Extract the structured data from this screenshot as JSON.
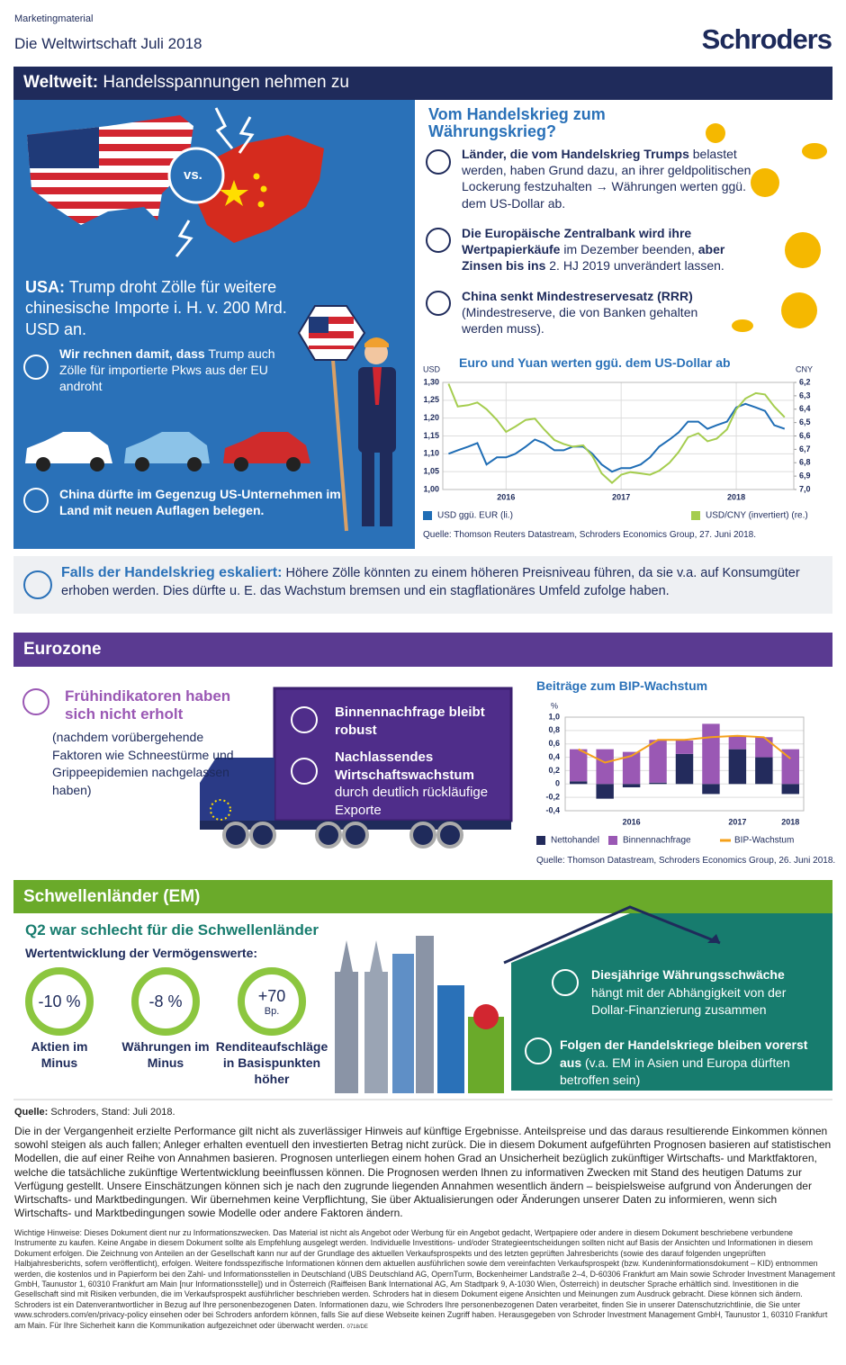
{
  "header": {
    "label": "Marketingmaterial",
    "title": "Die Weltwirtschaft Juli 2018",
    "logo": "Schroders"
  },
  "world": {
    "heading_bold": "Weltweit:",
    "heading": "Handelsspannungen nehmen zu",
    "vs": "vs.",
    "usa_bold": "USA:",
    "usa_text": "Trump droht Zölle für weitere chinesische Importe i. H. v. 200 Mrd. USD an.",
    "cars_bold": "Wir rechnen damit, dass",
    "cars_text": "Trump auch Zölle für importierte Pkws aus der EU androht",
    "china": "China dürfte im Gegenzug US-Unternehmen im Land mit neuen Auflagen belegen.",
    "currency_title": "Vom Handelskrieg zum Währungskrieg?",
    "points": [
      {
        "bold": "Länder, die vom Handelskrieg Trumps",
        "text": "belastet werden, haben Grund dazu, an ihrer geldpolitischen Lockerung festzuhalten → Währungen werten ggü. dem US-Dollar ab."
      },
      {
        "parts": [
          "Die Europäische Zentralbank wird ihre Wertpapierkäufe",
          "im Dezember beenden,",
          "aber Zinsen bis ins",
          "2. HJ 2019 unverändert lassen."
        ]
      },
      {
        "bold": "China senkt Mindestreservesatz (RRR)",
        "text": "(Mindestreserve, die von Banken gehalten werden muss)."
      }
    ],
    "escalation_bold": "Falls der Handelskrieg eskaliert:",
    "escalation_text": "Höhere Zölle könnten zu einem höheren Preisniveau führen, da sie v.a. auf Konsumgüter erhoben werden. Dies dürfte u. E. das Wachstum bremsen und ein stagflationäres Umfeld zufolge haben."
  },
  "eurozone": {
    "heading": "Eurozone",
    "title": "Frühindikatoren haben sich nicht erholt",
    "note": "(nachdem vorübergehende Faktoren wie Schneestürme und Grippeepidemien nachgelassen haben)",
    "truck": [
      {
        "bold": "Binnennachfrage bleibt robust"
      },
      {
        "bold": "Nachlassendes Wirtschaftswachstum",
        "text": "durch deutlich rückläufige Exporte"
      }
    ]
  },
  "em": {
    "heading": "Schwellenländer (EM)",
    "subtitle": "Q2 war schlecht für die Schwellenländer",
    "assets_title": "Wertentwicklung der Vermögenswerte:",
    "assets": [
      {
        "value": "-10 %",
        "label": "Aktien im Minus"
      },
      {
        "value": "-8 %",
        "label": "Währungen im Minus"
      },
      {
        "value": "+70",
        "unit": "Bp.",
        "label": "Renditeaufschläge in Basispunkten höher"
      }
    ],
    "points": [
      {
        "bold": "Diesjährige Währungsschwäche",
        "text": "hängt mit der Abhängigkeit von der Dollar-Finanzierung zusammen"
      },
      {
        "bold": "Folgen der Handelskriege bleiben vorerst aus",
        "text": "(v.a. EM in Asien und Europa dürften betroffen sein)"
      }
    ]
  },
  "footer": {
    "source_bold": "Quelle:",
    "source": "Schroders, Stand: Juli 2018.",
    "disclaimer": "Die in der Vergangenheit erzielte Performance gilt nicht als zuverlässiger Hinweis auf künftige Ergebnisse. Anteilspreise und das daraus resultierende Einkommen können sowohl steigen als auch fallen; Anleger erhalten eventuell den investierten Betrag nicht zurück. Die in diesem Dokument aufgeführten Prognosen basieren auf statistischen Modellen, die auf einer Reihe von Annahmen basieren. Prognosen unterliegen einem hohen Grad an Unsicherheit bezüglich zukünftiger Wirtschafts- und Marktfaktoren, welche die tatsächliche zukünftige Wertentwicklung beeinflussen können. Die Prognosen werden Ihnen zu informativen Zwecken mit Stand des heutigen Datums zur Verfügung gestellt. Unsere Einschätzungen können sich je nach den zugrunde liegenden Annahmen wesentlich ändern – beispielsweise aufgrund von Änderungen der Wirtschafts- und Marktbedingungen. Wir übernehmen keine Verpflichtung, Sie über Aktualisierungen oder Änderungen unserer Daten zu informieren, wenn sich Wirtschafts- und Marktbedingungen sowie Modelle oder andere Faktoren ändern.",
    "notice": "Wichtige Hinweise: Dieses Dokument dient nur zu Informationszwecken. Das Material ist nicht als Angebot oder Werbung für ein Angebot gedacht, Wertpapiere oder andere in diesem Dokument beschriebene verbundene Instrumente zu kaufen. Keine Angabe in diesem Dokument sollte als Empfehlung ausgelegt werden. Individuelle Investitions- und/oder Strategieentscheidungen sollten nicht auf Basis der Ansichten und Informationen in diesem Dokument erfolgen. Die Zeichnung von Anteilen an der Gesellschaft kann nur auf der Grundlage des aktuellen Verkaufsprospekts und des letzten geprüften Jahresberichts (sowie des darauf folgenden ungeprüften Halbjahresberichts, sofern veröffentlicht), erfolgen. Weitere fondsspezifische Informationen können dem aktuellen ausführlichen sowie dem vereinfachten Verkaufsprospekt (bzw. Kundeninformationsdokument – KID) entnommen werden, die kostenlos und in Papierform bei den Zahl- und Informationsstellen in Deutschland (UBS Deutschland AG, OpernTurm, Bockenheimer Landstraße 2–4, D-60306 Frankfurt am Main sowie Schroder Investment Management GmbH, Taunustor 1, 60310 Frankfurt am Main [nur Informationsstelle]) und in Österreich (Raiffeisen Bank International AG, Am Stadtpark 9, A-1030 Wien, Österreich) in deutscher Sprache erhältlich sind. Investitionen in die Gesellschaft sind mit Risiken verbunden, die im Verkaufsprospekt ausführlicher beschrieben werden. Schroders hat in diesem Dokument eigene Ansichten und Meinungen zum Ausdruck gebracht. Diese können sich ändern. Schroders ist ein Datenverantwortlicher in Bezug auf Ihre personenbezogenen Daten. Informationen dazu, wie Schroders Ihre personenbezogenen Daten verarbeitet, finden Sie in unserer Datenschutzrichtlinie, die Sie unter www.schroders.com/en/privacy-policy einsehen oder bei Schroders anfordern können, falls Sie auf diese Webseite keinen Zugriff haben. Herausgegeben von Schroder Investment Management GmbH, Taunustor 1, 60310 Frankfurt am Main. Für Ihre Sicherheit kann die Kommunikation aufgezeichnet oder überwacht werden.",
    "code": "0718/DE"
  },
  "chart_data": [
    {
      "type": "line",
      "title": "Euro und Yuan werten ggü. dem US-Dollar ab",
      "y_label": "USD",
      "y2_label": "CNY",
      "source": "Quelle: Thomson Reuters Datastream, Schroders Economics Group, 27. Juni 2018.",
      "x": [
        2015.5,
        2015.58,
        2015.67,
        2015.75,
        2015.83,
        2015.92,
        2016.0,
        2016.08,
        2016.17,
        2016.25,
        2016.33,
        2016.42,
        2016.5,
        2016.58,
        2016.67,
        2016.75,
        2016.83,
        2016.92,
        2017.0,
        2017.08,
        2017.17,
        2017.25,
        2017.33,
        2017.42,
        2017.5,
        2017.58,
        2017.67,
        2017.75,
        2017.83,
        2017.92,
        2018.0,
        2018.08,
        2018.17,
        2018.25,
        2018.33,
        2018.42
      ],
      "xlim": [
        2015.45,
        2018.5
      ],
      "xticks": [
        2016,
        2017,
        2018
      ],
      "ylim": [
        1.0,
        1.3
      ],
      "yticks": [
        {
          "value": 1.0,
          "label": "1,00"
        },
        {
          "value": 1.05,
          "label": "1,05"
        },
        {
          "value": 1.1,
          "label": "1,10"
        },
        {
          "value": 1.15,
          "label": "1,15"
        },
        {
          "value": 1.2,
          "label": "1,20"
        },
        {
          "value": 1.25,
          "label": "1,25"
        },
        {
          "value": 1.3,
          "label": "1,30"
        }
      ],
      "y2lim": [
        7.0,
        6.2
      ],
      "y2ticks": [
        {
          "value": 7.0,
          "label": "7,0"
        },
        {
          "value": 6.9,
          "label": "6,9"
        },
        {
          "value": 6.8,
          "label": "6,8"
        },
        {
          "value": 6.7,
          "label": "6,7"
        },
        {
          "value": 6.6,
          "label": "6,6"
        },
        {
          "value": 6.5,
          "label": "6,5"
        },
        {
          "value": 6.4,
          "label": "6,4"
        },
        {
          "value": 6.3,
          "label": "6,3"
        },
        {
          "value": 6.2,
          "label": "6,2"
        }
      ],
      "grid": true,
      "series": [
        {
          "name": "USD ggü. EUR (li.)",
          "color": "#1f6db5",
          "values": [
            1.1,
            1.11,
            1.12,
            1.13,
            1.07,
            1.09,
            1.09,
            1.1,
            1.12,
            1.14,
            1.13,
            1.11,
            1.11,
            1.12,
            1.12,
            1.1,
            1.07,
            1.05,
            1.06,
            1.06,
            1.07,
            1.09,
            1.12,
            1.14,
            1.16,
            1.19,
            1.19,
            1.17,
            1.18,
            1.19,
            1.23,
            1.24,
            1.23,
            1.22,
            1.18,
            1.17
          ]
        },
        {
          "name": "USD/CNY (invertiert) (re.)",
          "color": "#a5cd4f",
          "axis": "y2",
          "values": [
            6.21,
            6.38,
            6.37,
            6.35,
            6.4,
            6.48,
            6.57,
            6.53,
            6.48,
            6.47,
            6.55,
            6.63,
            6.66,
            6.68,
            6.67,
            6.75,
            6.88,
            6.95,
            6.89,
            6.87,
            6.88,
            6.89,
            6.86,
            6.8,
            6.72,
            6.61,
            6.58,
            6.64,
            6.62,
            6.55,
            6.4,
            6.32,
            6.28,
            6.29,
            6.38,
            6.46
          ]
        }
      ]
    },
    {
      "type": "bar",
      "title": "Beiträge zum BIP-Wachstum",
      "y_label": "%",
      "source": "Quelle: Thomson Datastream, Schroders Economics Group, 26. Juni 2018.",
      "categories": [
        null,
        null,
        "2016",
        null,
        null,
        null,
        "2017",
        null,
        "2018"
      ],
      "ylim": [
        -0.4,
        1.0
      ],
      "yticks": [
        {
          "value": -0.4,
          "label": "-0,4"
        },
        {
          "value": -0.2,
          "label": "-0,2"
        },
        0,
        {
          "value": 0.2,
          "label": "0,2"
        },
        {
          "value": 0.4,
          "label": "0,4"
        },
        {
          "value": 0.6,
          "label": "0,6"
        },
        {
          "value": 0.8,
          "label": "0,8"
        },
        {
          "value": 1.0,
          "label": "1,0"
        }
      ],
      "grid": true,
      "stacked": true,
      "series": [
        {
          "name": "Nettohandel",
          "color": "#232b5c",
          "values": [
            0.04,
            -0.22,
            -0.05,
            0.02,
            0.45,
            -0.15,
            0.52,
            0.4,
            -0.15
          ]
        },
        {
          "name": "Binnennachfrage",
          "color": "#9a58b4",
          "values": [
            0.48,
            0.52,
            0.48,
            0.64,
            0.2,
            0.9,
            0.2,
            0.3,
            0.52
          ]
        },
        {
          "name": "BIP-Wachstum",
          "color": "#f5a01a",
          "type": "line",
          "values": [
            0.52,
            0.32,
            0.42,
            0.66,
            0.66,
            0.7,
            0.72,
            0.7,
            0.38
          ]
        }
      ]
    }
  ]
}
